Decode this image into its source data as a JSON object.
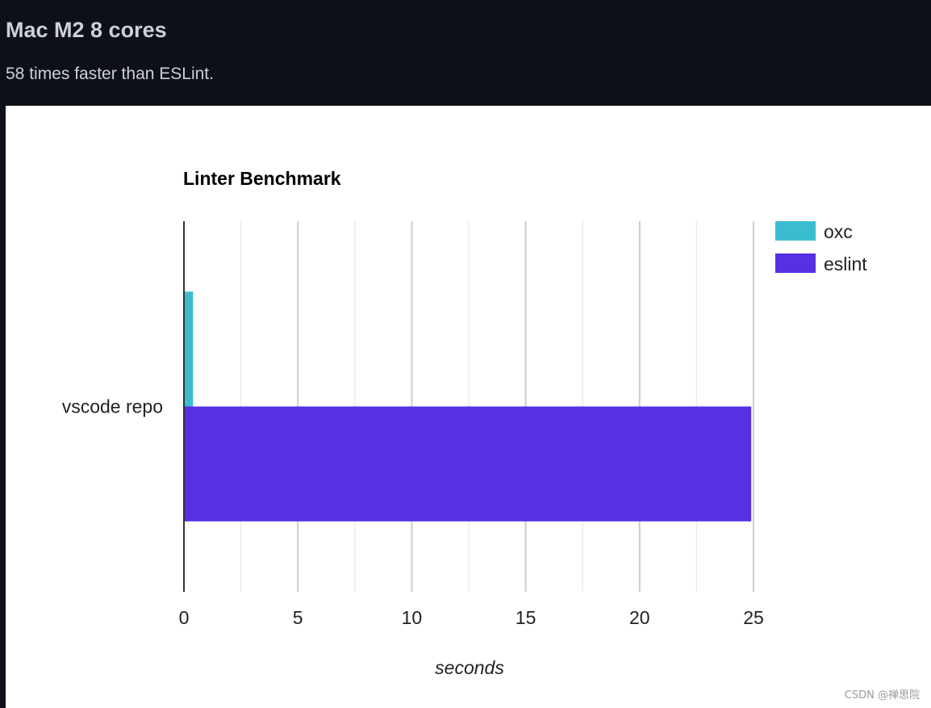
{
  "header": {
    "title": "Mac M2 8 cores",
    "subtitle": "58 times faster than ESLint."
  },
  "watermark": "CSDN @禅思院",
  "chart_data": {
    "type": "bar",
    "orientation": "horizontal",
    "title": "Linter Benchmark",
    "categories": [
      "vscode repo"
    ],
    "series": [
      {
        "name": "oxc",
        "values": [
          0.4
        ],
        "color": "#3bbdd0"
      },
      {
        "name": "eslint",
        "values": [
          24.9
        ],
        "color": "#5630e2"
      }
    ],
    "xlabel": "seconds",
    "ylabel": "",
    "xlim": [
      0,
      25
    ],
    "x_ticks": [
      "0",
      "5",
      "10",
      "15",
      "20",
      "25"
    ],
    "x_tick_values": [
      0,
      5,
      10,
      15,
      20,
      25
    ],
    "grid": true,
    "legend": "top-right"
  }
}
